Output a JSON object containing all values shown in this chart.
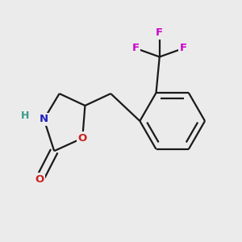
{
  "background_color": "#ebebeb",
  "bond_color": "#1a1a1a",
  "N_color": "#2222bb",
  "O_color": "#cc2020",
  "F_color": "#cc00cc",
  "H_color": "#3a9a8a",
  "line_width": 1.6,
  "figsize": [
    3.0,
    3.0
  ],
  "dpi": 100,
  "xlim": [
    0.1,
    2.9
  ],
  "ylim": [
    0.2,
    2.8
  ]
}
